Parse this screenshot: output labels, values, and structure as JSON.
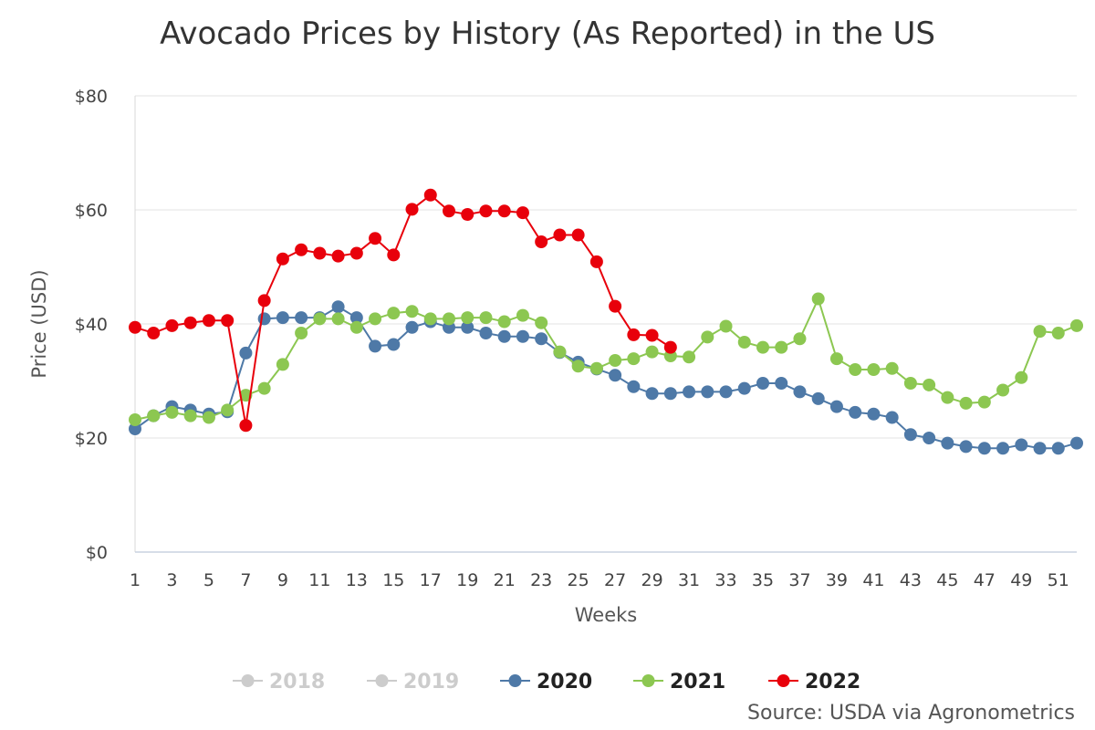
{
  "chart_data": {
    "type": "line",
    "title": "Avocado Prices by History (As Reported) in the US",
    "xlabel": "Weeks",
    "ylabel": "Price (USD)",
    "ylim": [
      0,
      80
    ],
    "yticks": [
      {
        "value": 0,
        "label": "$0"
      },
      {
        "value": 20,
        "label": "$20"
      },
      {
        "value": 40,
        "label": "$40"
      },
      {
        "value": 60,
        "label": "$60"
      },
      {
        "value": 80,
        "label": "$80"
      }
    ],
    "xlim": [
      1,
      52
    ],
    "xtick_labels": [
      "1",
      "3",
      "5",
      "7",
      "9",
      "11",
      "13",
      "15",
      "17",
      "19",
      "21",
      "23",
      "25",
      "27",
      "29",
      "31",
      "33",
      "35",
      "37",
      "39",
      "41",
      "43",
      "45",
      "47",
      "49",
      "51"
    ],
    "grid": "horizontal",
    "legend_position": "bottom",
    "series": [
      {
        "name": "2018",
        "color": "#cccccc",
        "visible": false,
        "values": []
      },
      {
        "name": "2019",
        "color": "#cccccc",
        "visible": false,
        "values": []
      },
      {
        "name": "2020",
        "color": "#4e79a7",
        "visible": true,
        "values": [
          21.6,
          23.9,
          25.5,
          24.9,
          24.2,
          24.6,
          34.9,
          40.9,
          41.1,
          41.1,
          41.1,
          43.0,
          41.1,
          36.1,
          36.4,
          39.4,
          40.4,
          39.4,
          39.4,
          38.4,
          37.8,
          37.8,
          37.4,
          35.0,
          33.3,
          32.1,
          31.0,
          29.0,
          27.8,
          27.8,
          28.1,
          28.1,
          28.1,
          28.7,
          29.6,
          29.6,
          28.1,
          26.9,
          25.5,
          24.5,
          24.2,
          23.6,
          20.6,
          20.0,
          19.1,
          18.5,
          18.2,
          18.2,
          18.8,
          18.2,
          18.2,
          19.1
        ]
      },
      {
        "name": "2021",
        "color": "#8cc751",
        "visible": true,
        "values": [
          23.2,
          23.9,
          24.5,
          23.9,
          23.6,
          24.9,
          27.5,
          28.7,
          32.9,
          38.4,
          40.9,
          40.9,
          39.4,
          40.9,
          41.9,
          42.2,
          40.9,
          40.9,
          41.1,
          41.1,
          40.4,
          41.5,
          40.2,
          35.1,
          32.6,
          32.2,
          33.6,
          33.9,
          35.1,
          34.4,
          34.2,
          37.7,
          39.6,
          36.8,
          35.9,
          35.9,
          37.4,
          44.4,
          33.9,
          32.0,
          32.0,
          32.2,
          29.6,
          29.3,
          27.1,
          26.1,
          26.3,
          28.4,
          30.6,
          38.7,
          38.4,
          39.7
        ]
      },
      {
        "name": "2022",
        "color": "#e8000b",
        "visible": true,
        "values": [
          39.4,
          38.4,
          39.7,
          40.2,
          40.6,
          40.6,
          22.2,
          44.1,
          51.4,
          53.0,
          52.4,
          51.9,
          52.4,
          55.0,
          52.1,
          60.1,
          62.6,
          59.8,
          59.2,
          59.8,
          59.8,
          59.5,
          54.4,
          55.6,
          55.6,
          50.9,
          43.1,
          38.1,
          38.0,
          35.9
        ]
      }
    ]
  },
  "source_note": "Source: USDA via Agronometrics"
}
